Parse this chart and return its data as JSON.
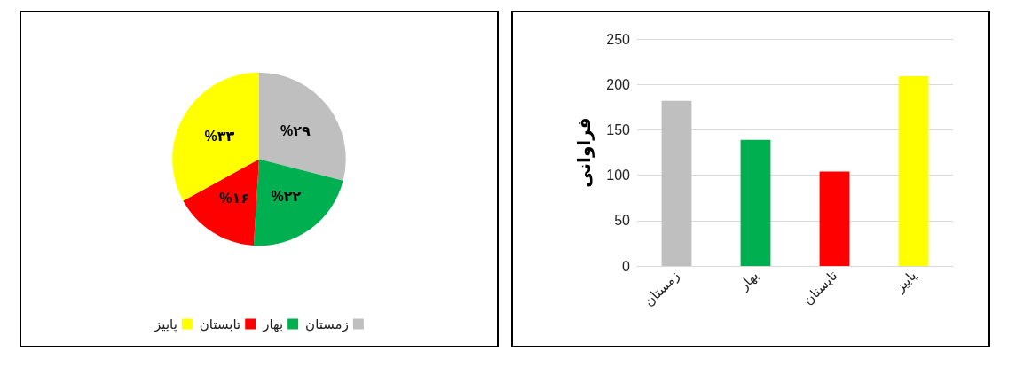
{
  "chart_data": [
    {
      "type": "pie",
      "categories": [
        "زمستان",
        "بهار",
        "تابستان",
        "پاییز"
      ],
      "values": [
        29,
        22,
        16,
        33
      ],
      "colors": [
        "#bfbfbf",
        "#00b050",
        "#ff0000",
        "#ffff00"
      ],
      "value_labels": [
        "%۲۹",
        "%۲۲",
        "%۱۶",
        "%۳۳"
      ],
      "legend": "bottom"
    },
    {
      "type": "bar",
      "categories": [
        "زمستان",
        "بهار",
        "تابستان",
        "پاییز"
      ],
      "values": [
        182,
        139,
        104,
        209
      ],
      "colors": [
        "#bfbfbf",
        "#00b050",
        "#ff0000",
        "#ffff00"
      ],
      "ylabel": "فراوانی",
      "ylim": [
        0,
        250
      ],
      "yticks": [
        0,
        50,
        100,
        150,
        200,
        250
      ],
      "grid": "y"
    }
  ]
}
